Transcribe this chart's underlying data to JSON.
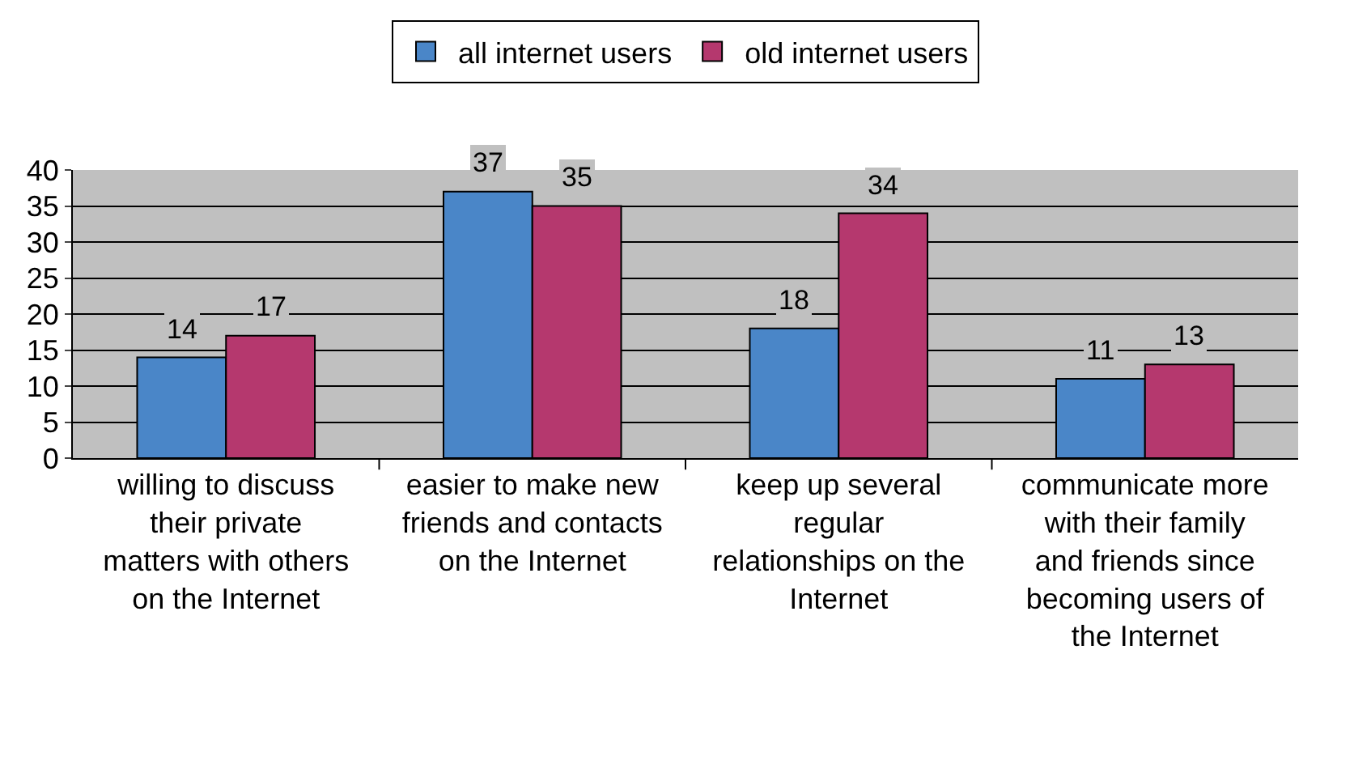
{
  "chart_data": {
    "type": "bar",
    "categories": [
      "willing to discuss their private matters with others on the Internet",
      "easier to make new friends and contacts on the Internet",
      "keep up several regular relationships on the Internet",
      "communicate more with their family and friends since becoming users of the Internet"
    ],
    "series": [
      {
        "name": "all internet users",
        "color": "#4a86c8",
        "values": [
          14,
          37,
          18,
          11
        ]
      },
      {
        "name": "old internet users",
        "color": "#b5386e",
        "values": [
          17,
          35,
          34,
          13
        ]
      }
    ],
    "ylim": [
      0,
      40
    ],
    "yticks": [
      0,
      5,
      10,
      15,
      20,
      25,
      30,
      35,
      40
    ],
    "grid": "y",
    "legend": "top",
    "data_labels": true
  }
}
